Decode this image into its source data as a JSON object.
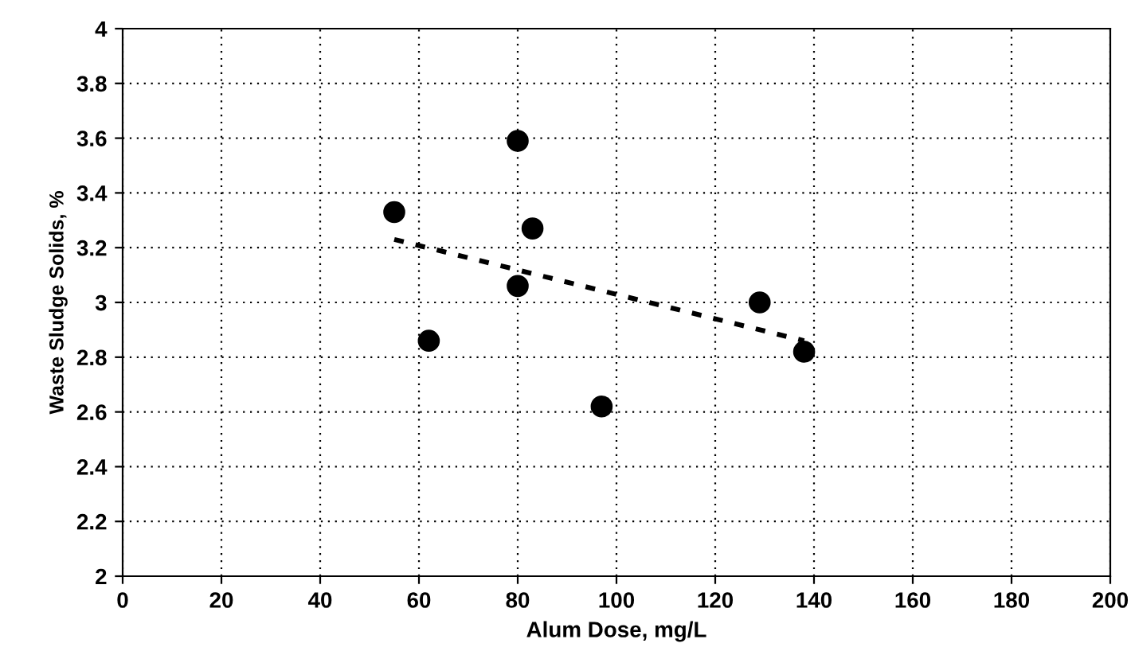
{
  "chart_data": {
    "type": "scatter",
    "xlabel": "Alum Dose, mg/L",
    "ylabel": "Waste Sludge Solids, %",
    "xlim": [
      0,
      200
    ],
    "xticks": [
      0,
      20,
      40,
      60,
      80,
      100,
      120,
      140,
      160,
      180,
      200
    ],
    "ylim": [
      2,
      4
    ],
    "yticks": [
      2,
      2.2,
      2.4,
      2.6,
      2.8,
      3,
      3.2,
      3.4,
      3.6,
      3.8,
      4
    ],
    "grid": true,
    "marker": "circle",
    "series": [
      {
        "color": "#000000",
        "x": [
          55,
          62,
          80,
          80,
          83,
          97,
          129,
          138
        ],
        "values": [
          3.33,
          2.86,
          3.59,
          3.06,
          3.27,
          2.62,
          3.0,
          2.82
        ]
      },
      {
        "type": "line",
        "color": "#000000",
        "line_style": "dashed",
        "marker": "none",
        "x": [
          55,
          138
        ],
        "values": [
          3.23,
          2.86
        ]
      }
    ]
  }
}
